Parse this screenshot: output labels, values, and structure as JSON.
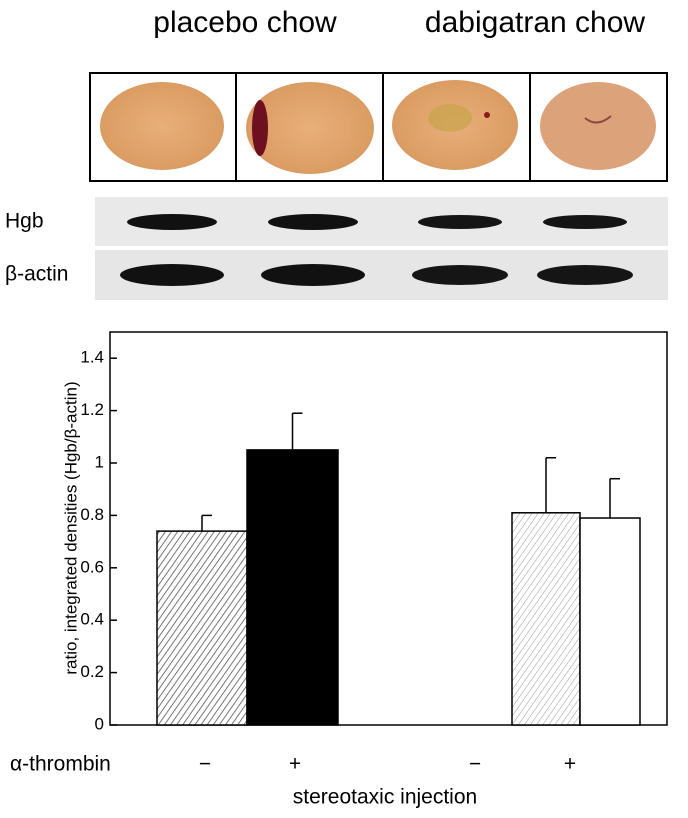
{
  "panels": {
    "left_title": "placebo chow",
    "right_title": "dabigatran chow",
    "blot_top": "Hgb",
    "blot_bottom": "β-actin"
  },
  "chart_data": {
    "type": "bar",
    "y_label": "ratio, integrated densities (Hgb/β-actin)",
    "x_label": "stereotaxic injection",
    "row_label": "α-thrombin",
    "categories": [
      "−",
      "+",
      "−",
      "+"
    ],
    "values": [
      0.74,
      1.05,
      0.81,
      0.79
    ],
    "errors": [
      0.06,
      0.14,
      0.21,
      0.15
    ],
    "ylim": [
      0,
      1.5
    ],
    "yticks": [
      0,
      0.2,
      0.4,
      0.6,
      0.8,
      1,
      1.2,
      1.4
    ]
  }
}
